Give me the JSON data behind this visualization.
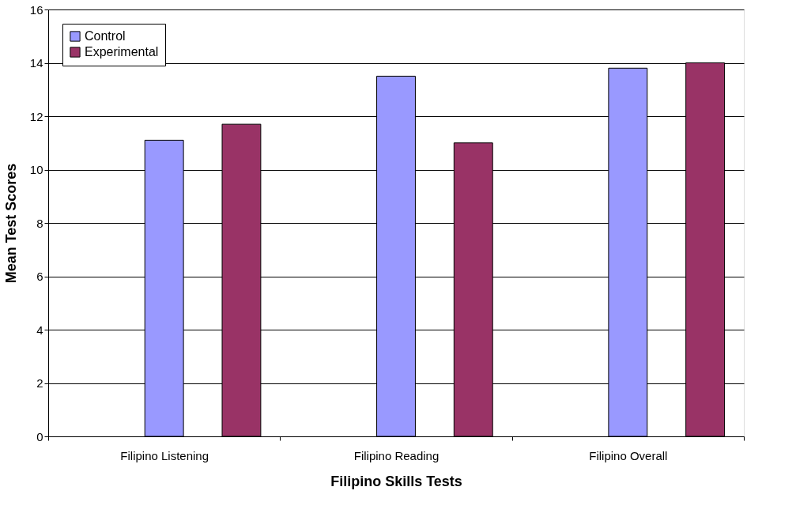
{
  "chart_data": {
    "type": "bar",
    "xlabel": "Filipino Skills Tests",
    "ylabel": "Mean Test Scores",
    "categories": [
      "Filipino Listening",
      "Filipino Reading",
      "Filipino Overall"
    ],
    "series": [
      {
        "name": "Control",
        "color": "#9999ff",
        "values": [
          11.1,
          13.5,
          13.8
        ]
      },
      {
        "name": "Experimental",
        "color": "#993366",
        "values": [
          11.7,
          11.0,
          14.0
        ]
      }
    ],
    "ylim": [
      0,
      16
    ],
    "yticks": [
      0,
      2,
      4,
      6,
      8,
      10,
      12,
      14,
      16
    ],
    "grid": "y",
    "legend": "top left"
  }
}
